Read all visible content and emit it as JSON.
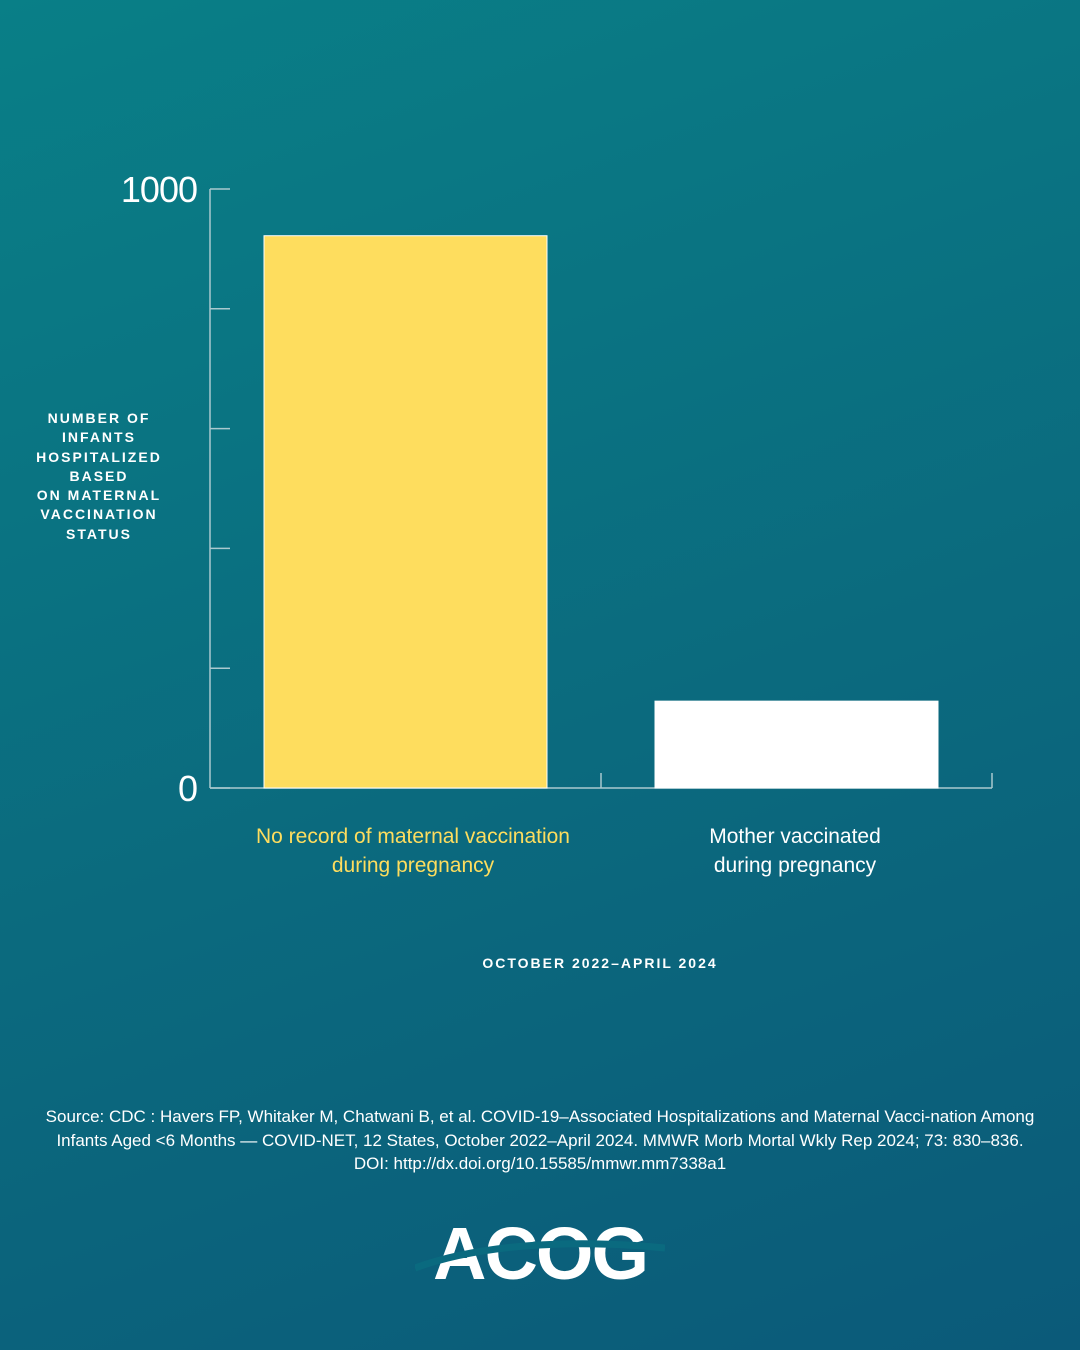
{
  "colors": {
    "background_start": "#097f87",
    "background_end": "#0b5a79",
    "highlight": "#fedd5e",
    "white": "#ffffff"
  },
  "chart_data": {
    "type": "bar",
    "categories": [
      "No record of maternal vaccination\nduring pregnancy",
      "Mother vaccinated\nduring pregnancy"
    ],
    "values": [
      922,
      145
    ],
    "bar_colors": [
      "#fedd5e",
      "#ffffff"
    ],
    "ylabel": "NUMBER OF\nINFANTS\nHOSPITALIZED\nBASED\nON MATERNAL\nVACCINATION\nSTATUS",
    "xlabel": "OCTOBER 2022–APRIL 2024",
    "ylim": [
      0,
      1000
    ],
    "yticks": [
      0,
      200,
      400,
      600,
      800,
      1000
    ],
    "ytick_labels": [
      "0",
      "",
      "",
      "",
      "",
      "1000"
    ],
    "grid": false
  },
  "footer": {
    "source": "Source: CDC : Havers FP, Whitaker M, Chatwani B, et al. COVID-19–Associated Hospitalizations and Maternal Vacci-nation Among Infants Aged <6 Months — COVID-NET, 12 States, October 2022–April 2024. MMWR Morb Mortal Wkly Rep 2024; 73: 830–836. DOI: http://dx.doi.org/10.15585/mmwr.mm7338a1",
    "logo": "ACOG"
  }
}
